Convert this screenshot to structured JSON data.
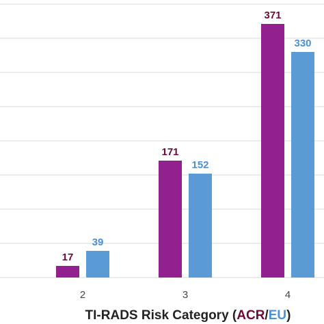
{
  "chart_data": {
    "type": "bar",
    "categories": [
      "2",
      "3",
      "4"
    ],
    "series": [
      {
        "name": "ACR",
        "values": [
          17,
          171,
          371
        ],
        "color": "#93208f",
        "label_color": "#6b0a3a"
      },
      {
        "name": "EU",
        "values": [
          39,
          152,
          330
        ],
        "color": "#5b9bd5",
        "label_color": "#4a90d9"
      }
    ],
    "xlabel_parts": [
      {
        "text": "TI-RADS Risk Category (",
        "color": "#222222"
      },
      {
        "text": "ACR",
        "color": "#6b0a3a"
      },
      {
        "text": "/",
        "color": "#222222"
      },
      {
        "text": "EU",
        "color": "#4a90d9"
      },
      {
        "text": ")",
        "color": "#222222"
      }
    ],
    "ylim": [
      0,
      400
    ],
    "y_grid_step": 50,
    "grid": true,
    "axis_color": "#d9d9d9"
  }
}
